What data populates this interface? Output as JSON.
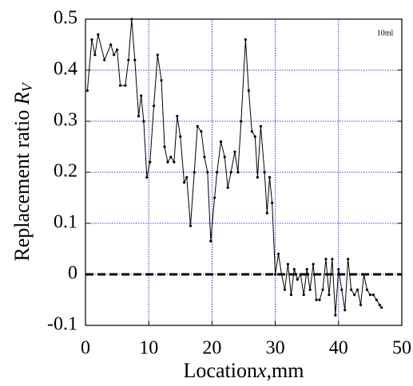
{
  "chart_data": {
    "type": "line",
    "ylabel": "Replacement ratio",
    "ylabel_var": "R",
    "ylabel_sub": "V",
    "xlabel": "Location",
    "xlabel_var": "x",
    "xlabel_unit": ",mm",
    "annotation": "10ml",
    "xlim": [
      0,
      50
    ],
    "ylim": [
      -0.1,
      0.5
    ],
    "xticks": [
      0,
      10,
      20,
      30,
      40,
      50
    ],
    "yticks": [
      -0.1,
      0,
      0.1,
      0.2,
      0.3,
      0.4,
      0.5
    ],
    "grid": true,
    "grid_color": "#0000cc",
    "reference_line": 0,
    "x": [
      0.3,
      1,
      1.5,
      2,
      3,
      4,
      4.5,
      5,
      5.5,
      6.3,
      6.8,
      7.3,
      7.8,
      8.4,
      8.8,
      9.2,
      9.7,
      10.2,
      10.8,
      11.4,
      12,
      12.5,
      13,
      13.5,
      14,
      14.5,
      15,
      15.6,
      16,
      16.6,
      17.2,
      17.7,
      18.3,
      18.8,
      19.3,
      19.8,
      20.4,
      20.8,
      21.4,
      22,
      22.5,
      23,
      23.6,
      24.1,
      24.6,
      25.3,
      25.8,
      26.3,
      26.8,
      27.2,
      27.7,
      28.3,
      28.7,
      29.1,
      29.5,
      30,
      30.5,
      31,
      31.5,
      32,
      32.5,
      33,
      33.5,
      34,
      34.5,
      35,
      35.5,
      36,
      36.5,
      37,
      37.5,
      38,
      38.5,
      39,
      39.5,
      40,
      40.5,
      41,
      41.5,
      42,
      42.5,
      43,
      43.5,
      44,
      44.5,
      45,
      45.5,
      46,
      46.5,
      46.8
    ],
    "series": [
      {
        "name": "10ml",
        "color": "#000000",
        "values": [
          0.36,
          0.46,
          0.43,
          0.47,
          0.42,
          0.45,
          0.43,
          0.44,
          0.37,
          0.37,
          0.42,
          0.5,
          0.42,
          0.31,
          0.35,
          0.3,
          0.19,
          0.22,
          0.33,
          0.43,
          0.38,
          0.25,
          0.22,
          0.23,
          0.22,
          0.31,
          0.27,
          0.18,
          0.19,
          0.095,
          0.2,
          0.29,
          0.28,
          0.23,
          0.2,
          0.065,
          0.15,
          0.2,
          0.26,
          0.23,
          0.17,
          0.2,
          0.24,
          0.2,
          0.3,
          0.46,
          0.36,
          0.28,
          0.27,
          0.19,
          0.29,
          0.2,
          0.12,
          0.19,
          0.14,
          0.0,
          0.04,
          0.0,
          -0.03,
          0.02,
          -0.04,
          0.01,
          -0.01,
          0.0,
          -0.04,
          0.01,
          -0.03,
          0.02,
          -0.05,
          -0.05,
          -0.03,
          0.03,
          -0.04,
          0.03,
          -0.08,
          0.01,
          -0.03,
          -0.07,
          0.03,
          -0.03,
          -0.04,
          -0.03,
          -0.06,
          0.0,
          -0.03,
          -0.04,
          -0.04,
          -0.05,
          -0.06,
          -0.065
        ]
      }
    ]
  }
}
